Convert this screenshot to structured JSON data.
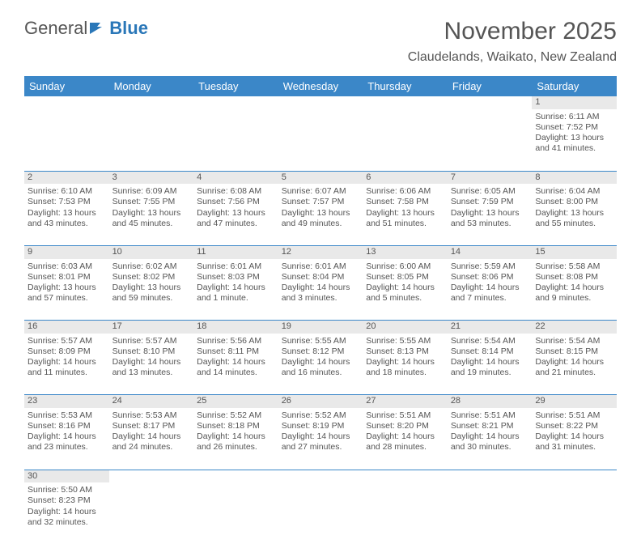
{
  "logo": {
    "part1": "General",
    "part2": "Blue"
  },
  "title": "November 2025",
  "location": "Claudelands, Waikato, New Zealand",
  "colors": {
    "header_bg": "#3b87c8",
    "header_text": "#ffffff",
    "daynum_bg": "#e9e9e9",
    "text": "#555555",
    "rule": "#3b87c8"
  },
  "days": [
    "Sunday",
    "Monday",
    "Tuesday",
    "Wednesday",
    "Thursday",
    "Friday",
    "Saturday"
  ],
  "weeks": [
    [
      null,
      null,
      null,
      null,
      null,
      null,
      {
        "n": "1",
        "sr": "Sunrise: 6:11 AM",
        "ss": "Sunset: 7:52 PM",
        "dl": "Daylight: 13 hours and 41 minutes."
      }
    ],
    [
      {
        "n": "2",
        "sr": "Sunrise: 6:10 AM",
        "ss": "Sunset: 7:53 PM",
        "dl": "Daylight: 13 hours and 43 minutes."
      },
      {
        "n": "3",
        "sr": "Sunrise: 6:09 AM",
        "ss": "Sunset: 7:55 PM",
        "dl": "Daylight: 13 hours and 45 minutes."
      },
      {
        "n": "4",
        "sr": "Sunrise: 6:08 AM",
        "ss": "Sunset: 7:56 PM",
        "dl": "Daylight: 13 hours and 47 minutes."
      },
      {
        "n": "5",
        "sr": "Sunrise: 6:07 AM",
        "ss": "Sunset: 7:57 PM",
        "dl": "Daylight: 13 hours and 49 minutes."
      },
      {
        "n": "6",
        "sr": "Sunrise: 6:06 AM",
        "ss": "Sunset: 7:58 PM",
        "dl": "Daylight: 13 hours and 51 minutes."
      },
      {
        "n": "7",
        "sr": "Sunrise: 6:05 AM",
        "ss": "Sunset: 7:59 PM",
        "dl": "Daylight: 13 hours and 53 minutes."
      },
      {
        "n": "8",
        "sr": "Sunrise: 6:04 AM",
        "ss": "Sunset: 8:00 PM",
        "dl": "Daylight: 13 hours and 55 minutes."
      }
    ],
    [
      {
        "n": "9",
        "sr": "Sunrise: 6:03 AM",
        "ss": "Sunset: 8:01 PM",
        "dl": "Daylight: 13 hours and 57 minutes."
      },
      {
        "n": "10",
        "sr": "Sunrise: 6:02 AM",
        "ss": "Sunset: 8:02 PM",
        "dl": "Daylight: 13 hours and 59 minutes."
      },
      {
        "n": "11",
        "sr": "Sunrise: 6:01 AM",
        "ss": "Sunset: 8:03 PM",
        "dl": "Daylight: 14 hours and 1 minute."
      },
      {
        "n": "12",
        "sr": "Sunrise: 6:01 AM",
        "ss": "Sunset: 8:04 PM",
        "dl": "Daylight: 14 hours and 3 minutes."
      },
      {
        "n": "13",
        "sr": "Sunrise: 6:00 AM",
        "ss": "Sunset: 8:05 PM",
        "dl": "Daylight: 14 hours and 5 minutes."
      },
      {
        "n": "14",
        "sr": "Sunrise: 5:59 AM",
        "ss": "Sunset: 8:06 PM",
        "dl": "Daylight: 14 hours and 7 minutes."
      },
      {
        "n": "15",
        "sr": "Sunrise: 5:58 AM",
        "ss": "Sunset: 8:08 PM",
        "dl": "Daylight: 14 hours and 9 minutes."
      }
    ],
    [
      {
        "n": "16",
        "sr": "Sunrise: 5:57 AM",
        "ss": "Sunset: 8:09 PM",
        "dl": "Daylight: 14 hours and 11 minutes."
      },
      {
        "n": "17",
        "sr": "Sunrise: 5:57 AM",
        "ss": "Sunset: 8:10 PM",
        "dl": "Daylight: 14 hours and 13 minutes."
      },
      {
        "n": "18",
        "sr": "Sunrise: 5:56 AM",
        "ss": "Sunset: 8:11 PM",
        "dl": "Daylight: 14 hours and 14 minutes."
      },
      {
        "n": "19",
        "sr": "Sunrise: 5:55 AM",
        "ss": "Sunset: 8:12 PM",
        "dl": "Daylight: 14 hours and 16 minutes."
      },
      {
        "n": "20",
        "sr": "Sunrise: 5:55 AM",
        "ss": "Sunset: 8:13 PM",
        "dl": "Daylight: 14 hours and 18 minutes."
      },
      {
        "n": "21",
        "sr": "Sunrise: 5:54 AM",
        "ss": "Sunset: 8:14 PM",
        "dl": "Daylight: 14 hours and 19 minutes."
      },
      {
        "n": "22",
        "sr": "Sunrise: 5:54 AM",
        "ss": "Sunset: 8:15 PM",
        "dl": "Daylight: 14 hours and 21 minutes."
      }
    ],
    [
      {
        "n": "23",
        "sr": "Sunrise: 5:53 AM",
        "ss": "Sunset: 8:16 PM",
        "dl": "Daylight: 14 hours and 23 minutes."
      },
      {
        "n": "24",
        "sr": "Sunrise: 5:53 AM",
        "ss": "Sunset: 8:17 PM",
        "dl": "Daylight: 14 hours and 24 minutes."
      },
      {
        "n": "25",
        "sr": "Sunrise: 5:52 AM",
        "ss": "Sunset: 8:18 PM",
        "dl": "Daylight: 14 hours and 26 minutes."
      },
      {
        "n": "26",
        "sr": "Sunrise: 5:52 AM",
        "ss": "Sunset: 8:19 PM",
        "dl": "Daylight: 14 hours and 27 minutes."
      },
      {
        "n": "27",
        "sr": "Sunrise: 5:51 AM",
        "ss": "Sunset: 8:20 PM",
        "dl": "Daylight: 14 hours and 28 minutes."
      },
      {
        "n": "28",
        "sr": "Sunrise: 5:51 AM",
        "ss": "Sunset: 8:21 PM",
        "dl": "Daylight: 14 hours and 30 minutes."
      },
      {
        "n": "29",
        "sr": "Sunrise: 5:51 AM",
        "ss": "Sunset: 8:22 PM",
        "dl": "Daylight: 14 hours and 31 minutes."
      }
    ],
    [
      {
        "n": "30",
        "sr": "Sunrise: 5:50 AM",
        "ss": "Sunset: 8:23 PM",
        "dl": "Daylight: 14 hours and 32 minutes."
      },
      null,
      null,
      null,
      null,
      null,
      null
    ]
  ]
}
